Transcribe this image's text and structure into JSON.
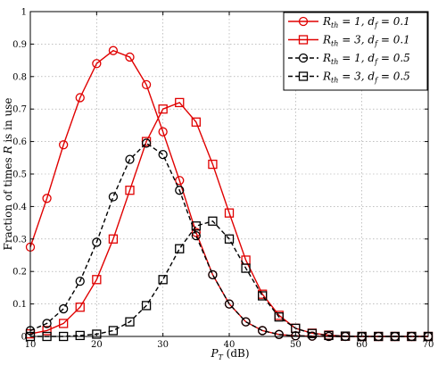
{
  "chart_data": {
    "type": "line",
    "xlabel": "P_T (dB)",
    "ylabel": "Fraction of times R is in use",
    "xlim": [
      10,
      70
    ],
    "ylim": [
      0,
      1
    ],
    "xticks": [
      10,
      20,
      30,
      40,
      50,
      60,
      70
    ],
    "yticks": [
      0,
      0.1,
      0.2,
      0.3,
      0.4,
      0.5,
      0.6,
      0.7,
      0.8,
      0.9,
      1
    ],
    "grid": true,
    "legend_position": "top-right",
    "x": [
      10,
      12.5,
      15,
      17.5,
      20,
      22.5,
      25,
      27.5,
      30,
      32.5,
      35,
      37.5,
      40,
      42.5,
      45,
      47.5,
      50,
      52.5,
      55,
      57.5,
      60,
      62.5,
      65,
      67.5,
      70
    ],
    "series": [
      {
        "name": "R_th = 1, d_f = 0.1",
        "color": "#e00000",
        "line_style": "solid",
        "marker": "circle",
        "values": [
          0.275,
          0.425,
          0.59,
          0.735,
          0.84,
          0.88,
          0.86,
          0.775,
          0.63,
          0.48,
          0.32,
          0.19,
          0.1,
          0.045,
          0.018,
          0.006,
          0.002,
          0.001,
          0,
          0,
          0,
          0,
          0,
          0,
          0
        ]
      },
      {
        "name": "R_th = 3, d_f = 0.1",
        "color": "#e00000",
        "line_style": "solid",
        "marker": "square",
        "values": [
          0.008,
          0.018,
          0.04,
          0.09,
          0.175,
          0.3,
          0.45,
          0.6,
          0.7,
          0.72,
          0.66,
          0.53,
          0.38,
          0.235,
          0.13,
          0.065,
          0.025,
          0.01,
          0.004,
          0.001,
          0,
          0,
          0,
          0,
          0
        ]
      },
      {
        "name": "R_th = 1, d_f = 0.5",
        "color": "#000000",
        "line_style": "dashed",
        "marker": "circle",
        "values": [
          0.018,
          0.04,
          0.085,
          0.17,
          0.29,
          0.43,
          0.545,
          0.595,
          0.56,
          0.45,
          0.31,
          0.19,
          0.1,
          0.045,
          0.018,
          0.006,
          0.002,
          0.001,
          0,
          0,
          0,
          0,
          0,
          0,
          0
        ]
      },
      {
        "name": "R_th = 3, d_f = 0.5",
        "color": "#000000",
        "line_style": "dashed",
        "marker": "square",
        "values": [
          0,
          0,
          0,
          0.003,
          0.007,
          0.018,
          0.045,
          0.095,
          0.175,
          0.27,
          0.34,
          0.355,
          0.3,
          0.21,
          0.125,
          0.06,
          0.025,
          0.009,
          0.003,
          0.001,
          0,
          0,
          0,
          0,
          0
        ]
      }
    ]
  }
}
